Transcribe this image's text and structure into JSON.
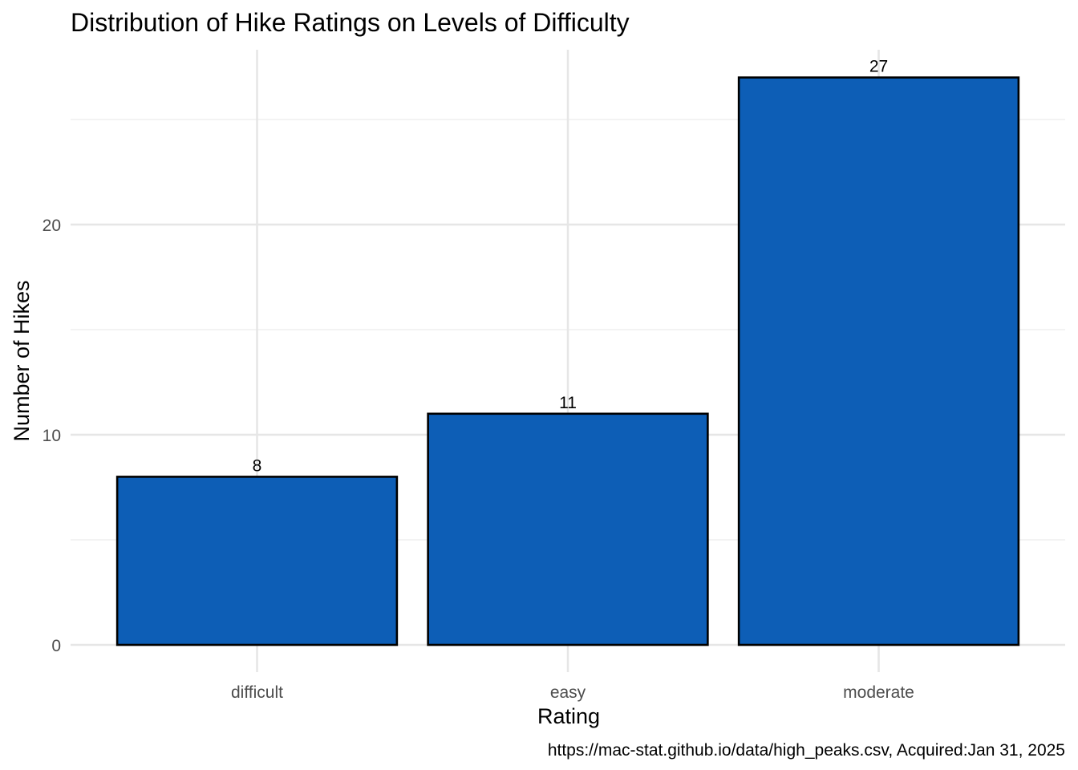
{
  "chart_data": {
    "type": "bar",
    "title": "Distribution of Hike Ratings on Levels of Difficulty",
    "xlabel": "Rating",
    "ylabel": "Number of Hikes",
    "categories": [
      "difficult",
      "easy",
      "moderate"
    ],
    "values": [
      8,
      11,
      27
    ],
    "ylim": [
      0,
      28.35
    ],
    "yticks": [
      0,
      10,
      20
    ],
    "y_minor_ticks": [
      5,
      15,
      25
    ],
    "grid": true,
    "bar_color": "#0d5eb6",
    "bar_outline": "#000000",
    "caption": "https://mac-stat.github.io/data/high_peaks.csv, Acquired:Jan 31, 2025"
  }
}
